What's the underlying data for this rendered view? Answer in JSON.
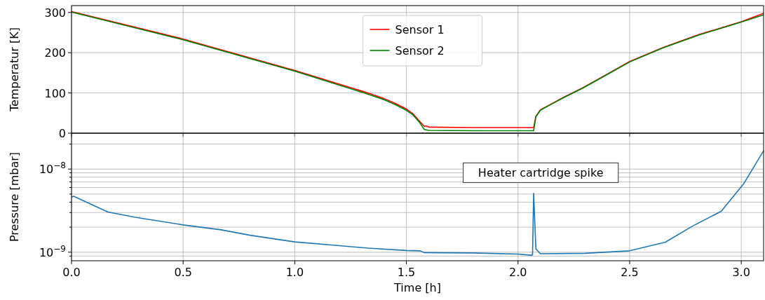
{
  "chart_data": [
    {
      "type": "line",
      "ylabel": "Temperatur [K]",
      "xlim": [
        0,
        3.1
      ],
      "ylim": [
        0,
        317
      ],
      "xticks": [
        0,
        0.5,
        1,
        1.5,
        2,
        2.5,
        3
      ],
      "yticks": [
        0,
        100,
        200,
        300
      ],
      "tick_labels": "y",
      "grid": true,
      "legend": "top",
      "line_style": "solid",
      "marker": "none",
      "series": [
        {
          "name": "Sensor 1",
          "color": "#ff0000",
          "x": [
            0,
            0.5,
            1,
            1.31,
            1.4,
            1.45,
            1.5,
            1.53,
            1.56,
            1.58,
            1.59,
            1.6,
            1.8,
            2.06,
            2.07,
            2.08,
            2.1,
            2.15,
            2.2,
            2.29,
            2.4,
            2.5,
            2.65,
            2.81,
            2.9,
            3,
            3.1
          ],
          "values": [
            302,
            234,
            156,
            103,
            86,
            74,
            60,
            48,
            29,
            17,
            18,
            15,
            14,
            14,
            14,
            42,
            58,
            73,
            88,
            113,
            147,
            178,
            213,
            245,
            260,
            277,
            298
          ]
        },
        {
          "name": "Sensor 2",
          "color": "#008000",
          "x": [
            0,
            0.5,
            1,
            1.31,
            1.4,
            1.45,
            1.5,
            1.53,
            1.56,
            1.58,
            1.6,
            1.8,
            2.06,
            2.07,
            2.08,
            2.1,
            2.15,
            2.2,
            2.29,
            2.4,
            2.5,
            2.65,
            2.81,
            2.9,
            3,
            3.1
          ],
          "values": [
            301,
            232,
            154,
            100,
            83,
            71,
            57,
            45,
            26,
            9,
            7,
            6,
            6,
            6,
            41,
            57,
            72,
            87,
            112,
            146,
            177,
            212,
            244,
            259,
            276,
            294
          ]
        }
      ]
    },
    {
      "type": "line",
      "xlabel": "Time [h]",
      "ylabel": "Pressure [mbar]",
      "xlim": [
        0,
        3.1
      ],
      "ylim": [
        7.9e-10,
        2.7e-08
      ],
      "log": "y",
      "xticks": [
        {
          "value": 0,
          "label": "0.0"
        },
        {
          "value": 0.5,
          "label": "0.5"
        },
        {
          "value": 1,
          "label": "1.0"
        },
        {
          "value": 1.5,
          "label": "1.5"
        },
        {
          "value": 2,
          "label": "2.0"
        },
        {
          "value": 2.5,
          "label": "2.5"
        },
        {
          "value": 3,
          "label": "3.0"
        }
      ],
      "yticks": [
        {
          "value": 9e-10,
          "label": null
        },
        {
          "value": 1e-09,
          "label": "10$^{−9}$"
        },
        {
          "value": 2e-09,
          "label": null
        },
        {
          "value": 3e-09,
          "label": null
        },
        {
          "value": 4e-09,
          "label": null
        },
        {
          "value": 5e-09,
          "label": null
        },
        {
          "value": 6e-09,
          "label": null
        },
        {
          "value": 7e-09,
          "label": null
        },
        {
          "value": 8e-09,
          "label": null
        },
        {
          "value": 9e-09,
          "label": null
        },
        {
          "value": 1e-08,
          "label": "10$^{−8}$"
        },
        {
          "value": 2e-08,
          "label": null
        }
      ],
      "grid": true,
      "line_style": "solid",
      "marker": "none",
      "annotations": [
        "Heater cartridge spike"
      ],
      "series": [
        {
          "color": "#1f77b4",
          "x": [
            0,
            0.01,
            0.163,
            0.286,
            0.5,
            0.67,
            0.8,
            1,
            1.2,
            1.33,
            1.5,
            1.56,
            1.58,
            1.8,
            2,
            2.06,
            2.065,
            2.07,
            2.08,
            2.1,
            2.3,
            2.5,
            2.66,
            2.78,
            2.91,
            3.01,
            3.1
          ],
          "values": [
            4.6e-09,
            4.7e-09,
            3.04e-09,
            2.63e-09,
            2.13e-09,
            1.86e-09,
            1.6e-09,
            1.33e-09,
            1.2e-09,
            1.12e-09,
            1.05e-09,
            1.04e-09,
            9.9e-10,
            9.8e-10,
            9.5e-10,
            9.2e-10,
            9.3e-10,
            5.1e-09,
            1.1e-09,
            9.6e-10,
            9.7e-10,
            1.04e-09,
            1.32e-09,
            2.05e-09,
            3.1e-09,
            6.6e-09,
            1.66e-08
          ]
        }
      ]
    }
  ]
}
